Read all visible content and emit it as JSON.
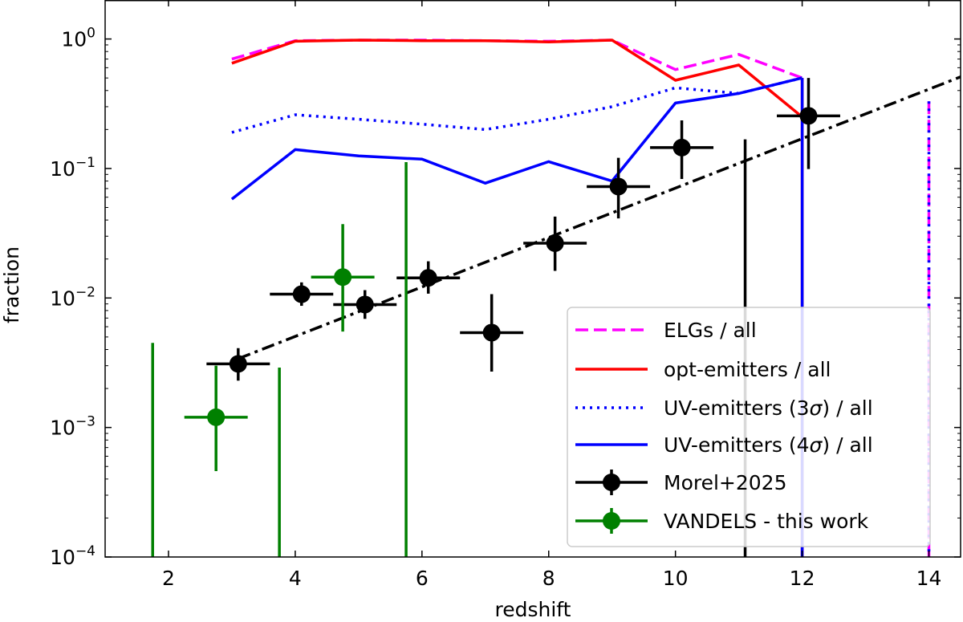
{
  "chart_data": {
    "type": "line",
    "xlabel": "redshift",
    "ylabel": "fraction",
    "xlim": [
      1.0,
      14.5
    ],
    "ylim": [
      0.0001,
      2.0
    ],
    "yscale": "log",
    "x_ticks": [
      2,
      4,
      6,
      8,
      10,
      12,
      14
    ],
    "x_tick_labels": [
      "2",
      "4",
      "6",
      "8",
      "10",
      "12",
      "14"
    ],
    "y_ticks": [
      0.0001,
      0.001,
      0.01,
      0.1,
      1
    ],
    "y_tick_labels": [
      {
        "base": "10",
        "exp": "−4"
      },
      {
        "base": "10",
        "exp": "−3"
      },
      {
        "base": "10",
        "exp": "−2"
      },
      {
        "base": "10",
        "exp": "−1"
      },
      {
        "base": "10",
        "exp": "0"
      }
    ],
    "legend_position": "lower-right",
    "series": [
      {
        "name": "ELGs / all",
        "label_parts": [
          "ELGs / all"
        ],
        "style": "dashed",
        "color": "#ff00ff",
        "x": [
          3,
          4,
          5,
          6,
          7,
          8,
          9,
          10,
          11,
          12
        ],
        "y": [
          0.7,
          0.97,
          0.98,
          0.98,
          0.97,
          0.96,
          0.98,
          0.58,
          0.76,
          0.5
        ]
      },
      {
        "name": "opt-emitters / all",
        "label_parts": [
          "opt-emitters / all"
        ],
        "style": "solid",
        "color": "#ff0000",
        "x": [
          3,
          4,
          5,
          6,
          7,
          8,
          9,
          10,
          11,
          12
        ],
        "y": [
          0.65,
          0.96,
          0.98,
          0.97,
          0.97,
          0.95,
          0.98,
          0.48,
          0.63,
          0.25
        ]
      },
      {
        "name": "UV-emitters (3σ) / all",
        "label_parts": [
          "UV-emitters (3",
          "σ",
          ") / all"
        ],
        "style": "dotted",
        "color": "#0000ff",
        "x": [
          3,
          4,
          5,
          6,
          7,
          8,
          9,
          10,
          11,
          12
        ],
        "y": [
          0.19,
          0.26,
          0.24,
          0.22,
          0.2,
          0.24,
          0.3,
          0.42,
          0.38,
          0.5
        ]
      },
      {
        "name": "UV-emitters (4σ) / all",
        "label_parts": [
          "UV-emitters (4",
          "σ",
          ") / all"
        ],
        "style": "solid",
        "color": "#0000ff",
        "x": [
          3,
          4,
          5,
          6,
          7,
          8,
          9,
          10,
          11,
          12
        ],
        "y": [
          0.058,
          0.14,
          0.125,
          0.118,
          0.077,
          0.113,
          0.08,
          0.32,
          0.38,
          0.5
        ]
      }
    ],
    "drops": [
      {
        "x": 12.0,
        "y_top": 0.5,
        "color": "#ff0000",
        "style": "solid"
      },
      {
        "x": 12.0,
        "y_top": 0.5,
        "color": "#0000ff",
        "style": "solid"
      },
      {
        "x": 14.0,
        "y_top": 0.33,
        "color": "#ff00ff",
        "style": "dashed"
      },
      {
        "x": 14.0,
        "y_top": 0.33,
        "color": "#0000ff",
        "style": "dotted"
      }
    ],
    "errorbar_series": [
      {
        "name": "Morel+2025",
        "color": "#000000",
        "points": [
          {
            "x": 3.1,
            "y": 0.0031,
            "xerr": 0.5,
            "ylo": 0.0023,
            "yhi": 0.0041
          },
          {
            "x": 4.1,
            "y": 0.0107,
            "xerr": 0.5,
            "ylo": 0.0087,
            "yhi": 0.0132
          },
          {
            "x": 5.1,
            "y": 0.0089,
            "xerr": 0.5,
            "ylo": 0.0069,
            "yhi": 0.0115
          },
          {
            "x": 6.1,
            "y": 0.0143,
            "xerr": 0.5,
            "ylo": 0.0108,
            "yhi": 0.0192
          },
          {
            "x": 7.1,
            "y": 0.0054,
            "xerr": 0.5,
            "ylo": 0.0027,
            "yhi": 0.0107
          },
          {
            "x": 8.1,
            "y": 0.0265,
            "xerr": 0.5,
            "ylo": 0.0162,
            "yhi": 0.0425
          },
          {
            "x": 9.1,
            "y": 0.0725,
            "xerr": 0.5,
            "ylo": 0.0412,
            "yhi": 0.121
          },
          {
            "x": 10.1,
            "y": 0.145,
            "xerr": 0.5,
            "ylo": 0.083,
            "yhi": 0.235
          },
          {
            "x": 11.1,
            "y": 0.0,
            "xerr": 0.0,
            "ylo": 0.0001,
            "yhi": 0.168
          },
          {
            "x": 12.1,
            "y": 0.255,
            "xerr": 0.5,
            "ylo": 0.099,
            "yhi": 0.5
          }
        ]
      },
      {
        "name": "VANDELS - this work",
        "color": "#008000",
        "points": [
          {
            "x": 1.75,
            "y": 0.0,
            "xerr": 0.0,
            "ylo": 0.0001,
            "yhi": 0.0045
          },
          {
            "x": 2.75,
            "y": 0.0012,
            "xerr": 0.5,
            "ylo": 0.00046,
            "yhi": 0.003
          },
          {
            "x": 3.75,
            "y": 0.0,
            "xerr": 0.0,
            "ylo": 0.0001,
            "yhi": 0.0029
          },
          {
            "x": 4.75,
            "y": 0.0145,
            "xerr": 0.5,
            "ylo": 0.0055,
            "yhi": 0.0372
          },
          {
            "x": 5.75,
            "y": 0.0,
            "xerr": 0.0,
            "ylo": 0.0001,
            "yhi": 0.112
          }
        ]
      }
    ],
    "fit_line": {
      "name": "fit",
      "style": "dashdot",
      "color": "#000000",
      "x": [
        3.1,
        14.5
      ],
      "y": [
        0.0034,
        0.51
      ]
    }
  }
}
